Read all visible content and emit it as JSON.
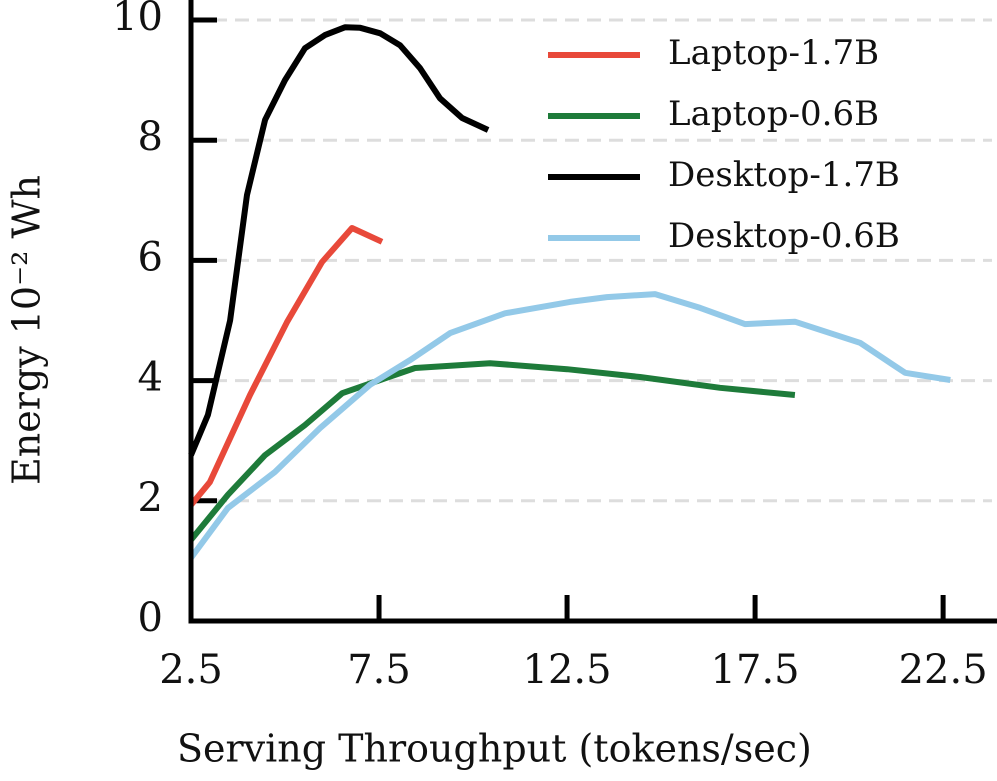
{
  "chart_data": {
    "type": "line",
    "xlabel": "Serving Throughput (tokens/sec)",
    "ylabel": "Energy  10⁻² Wh",
    "xlim": [
      2.5,
      23.8
    ],
    "ylim": [
      0,
      10.3
    ],
    "xticks": [
      2.5,
      7.5,
      12.5,
      17.5,
      22.5
    ],
    "yticks": [
      0,
      2,
      4,
      6,
      8,
      10
    ],
    "grid": true,
    "legend": "upper right",
    "series": [
      {
        "name": "Laptop-1.7B",
        "color": "#e8493a",
        "x": [
          2.5,
          3.0,
          4.07,
          5.05,
          5.98,
          6.78,
          7.58
        ],
        "values": [
          1.93,
          2.31,
          3.76,
          4.97,
          5.97,
          6.54,
          6.31
        ]
      },
      {
        "name": "Laptop-0.6B",
        "color": "#1e7b3a",
        "x": [
          2.5,
          3.48,
          4.47,
          5.53,
          6.52,
          7.53,
          8.46,
          10.45,
          12.5,
          14.44,
          16.57,
          18.56
        ],
        "values": [
          1.35,
          2.1,
          2.76,
          3.26,
          3.79,
          4.01,
          4.21,
          4.29,
          4.19,
          4.06,
          3.88,
          3.76
        ]
      },
      {
        "name": "Desktop-1.7B",
        "color": "#000000",
        "x": [
          2.5,
          2.95,
          3.54,
          3.99,
          4.47,
          5.0,
          5.53,
          6.06,
          6.6,
          7.0,
          7.53,
          8.06,
          8.59,
          9.12,
          9.71,
          10.4
        ],
        "values": [
          2.76,
          3.43,
          5.0,
          7.09,
          8.34,
          9.0,
          9.53,
          9.75,
          9.88,
          9.87,
          9.78,
          9.58,
          9.2,
          8.7,
          8.37,
          8.17
        ]
      },
      {
        "name": "Desktop-0.6B",
        "color": "#93c9e8",
        "x": [
          2.5,
          3.48,
          4.73,
          5.93,
          7.26,
          8.32,
          9.39,
          10.85,
          12.58,
          13.56,
          14.84,
          16.04,
          17.23,
          18.56,
          20.29,
          21.49,
          22.69
        ],
        "values": [
          1.05,
          1.88,
          2.48,
          3.21,
          3.93,
          4.34,
          4.79,
          5.12,
          5.31,
          5.39,
          5.44,
          5.21,
          4.94,
          4.98,
          4.63,
          4.13,
          4.01
        ]
      }
    ]
  }
}
